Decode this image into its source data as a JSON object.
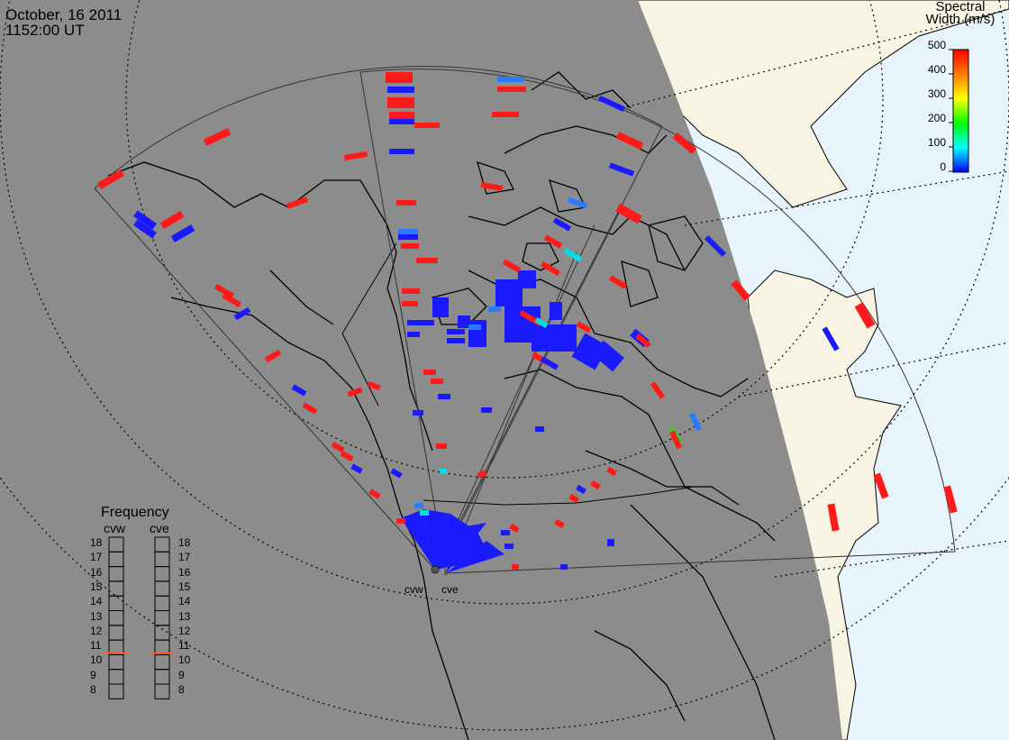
{
  "header": {
    "date": "October, 16 2011",
    "time": "1152:00 UT"
  },
  "colors": {
    "night": "#8c8c8c",
    "land_day": "#f7f4e4",
    "ocean_day": "#e8f4fb",
    "coast": "#000000",
    "blue": "#1a1aff",
    "red": "#ff1a1a",
    "cyan": "#00e0e0",
    "green": "#33cc33",
    "light_blue": "#2a7bff",
    "freq_marker": "#ff5a1f"
  },
  "color_scale": {
    "title_line1": "Spectral",
    "title_line2": "Width (m/s)",
    "ticks": [
      "500",
      "400",
      "300",
      "200",
      "100",
      "0"
    ],
    "gradient": [
      "#ff0000",
      "#ff7a00",
      "#ffff00",
      "#00ff00",
      "#00ffff",
      "#0000ff"
    ]
  },
  "frequency": {
    "title": "Frequency",
    "columns": [
      "cvw",
      "cve"
    ],
    "levels": [
      "18",
      "17",
      "16",
      "15",
      "14",
      "13",
      "12",
      "11",
      "10",
      "9",
      "8"
    ],
    "cvw_mhz": 10.6,
    "cve_mhz": 10.6
  },
  "radars": {
    "west_label": "cvw",
    "east_label": "cve"
  }
}
